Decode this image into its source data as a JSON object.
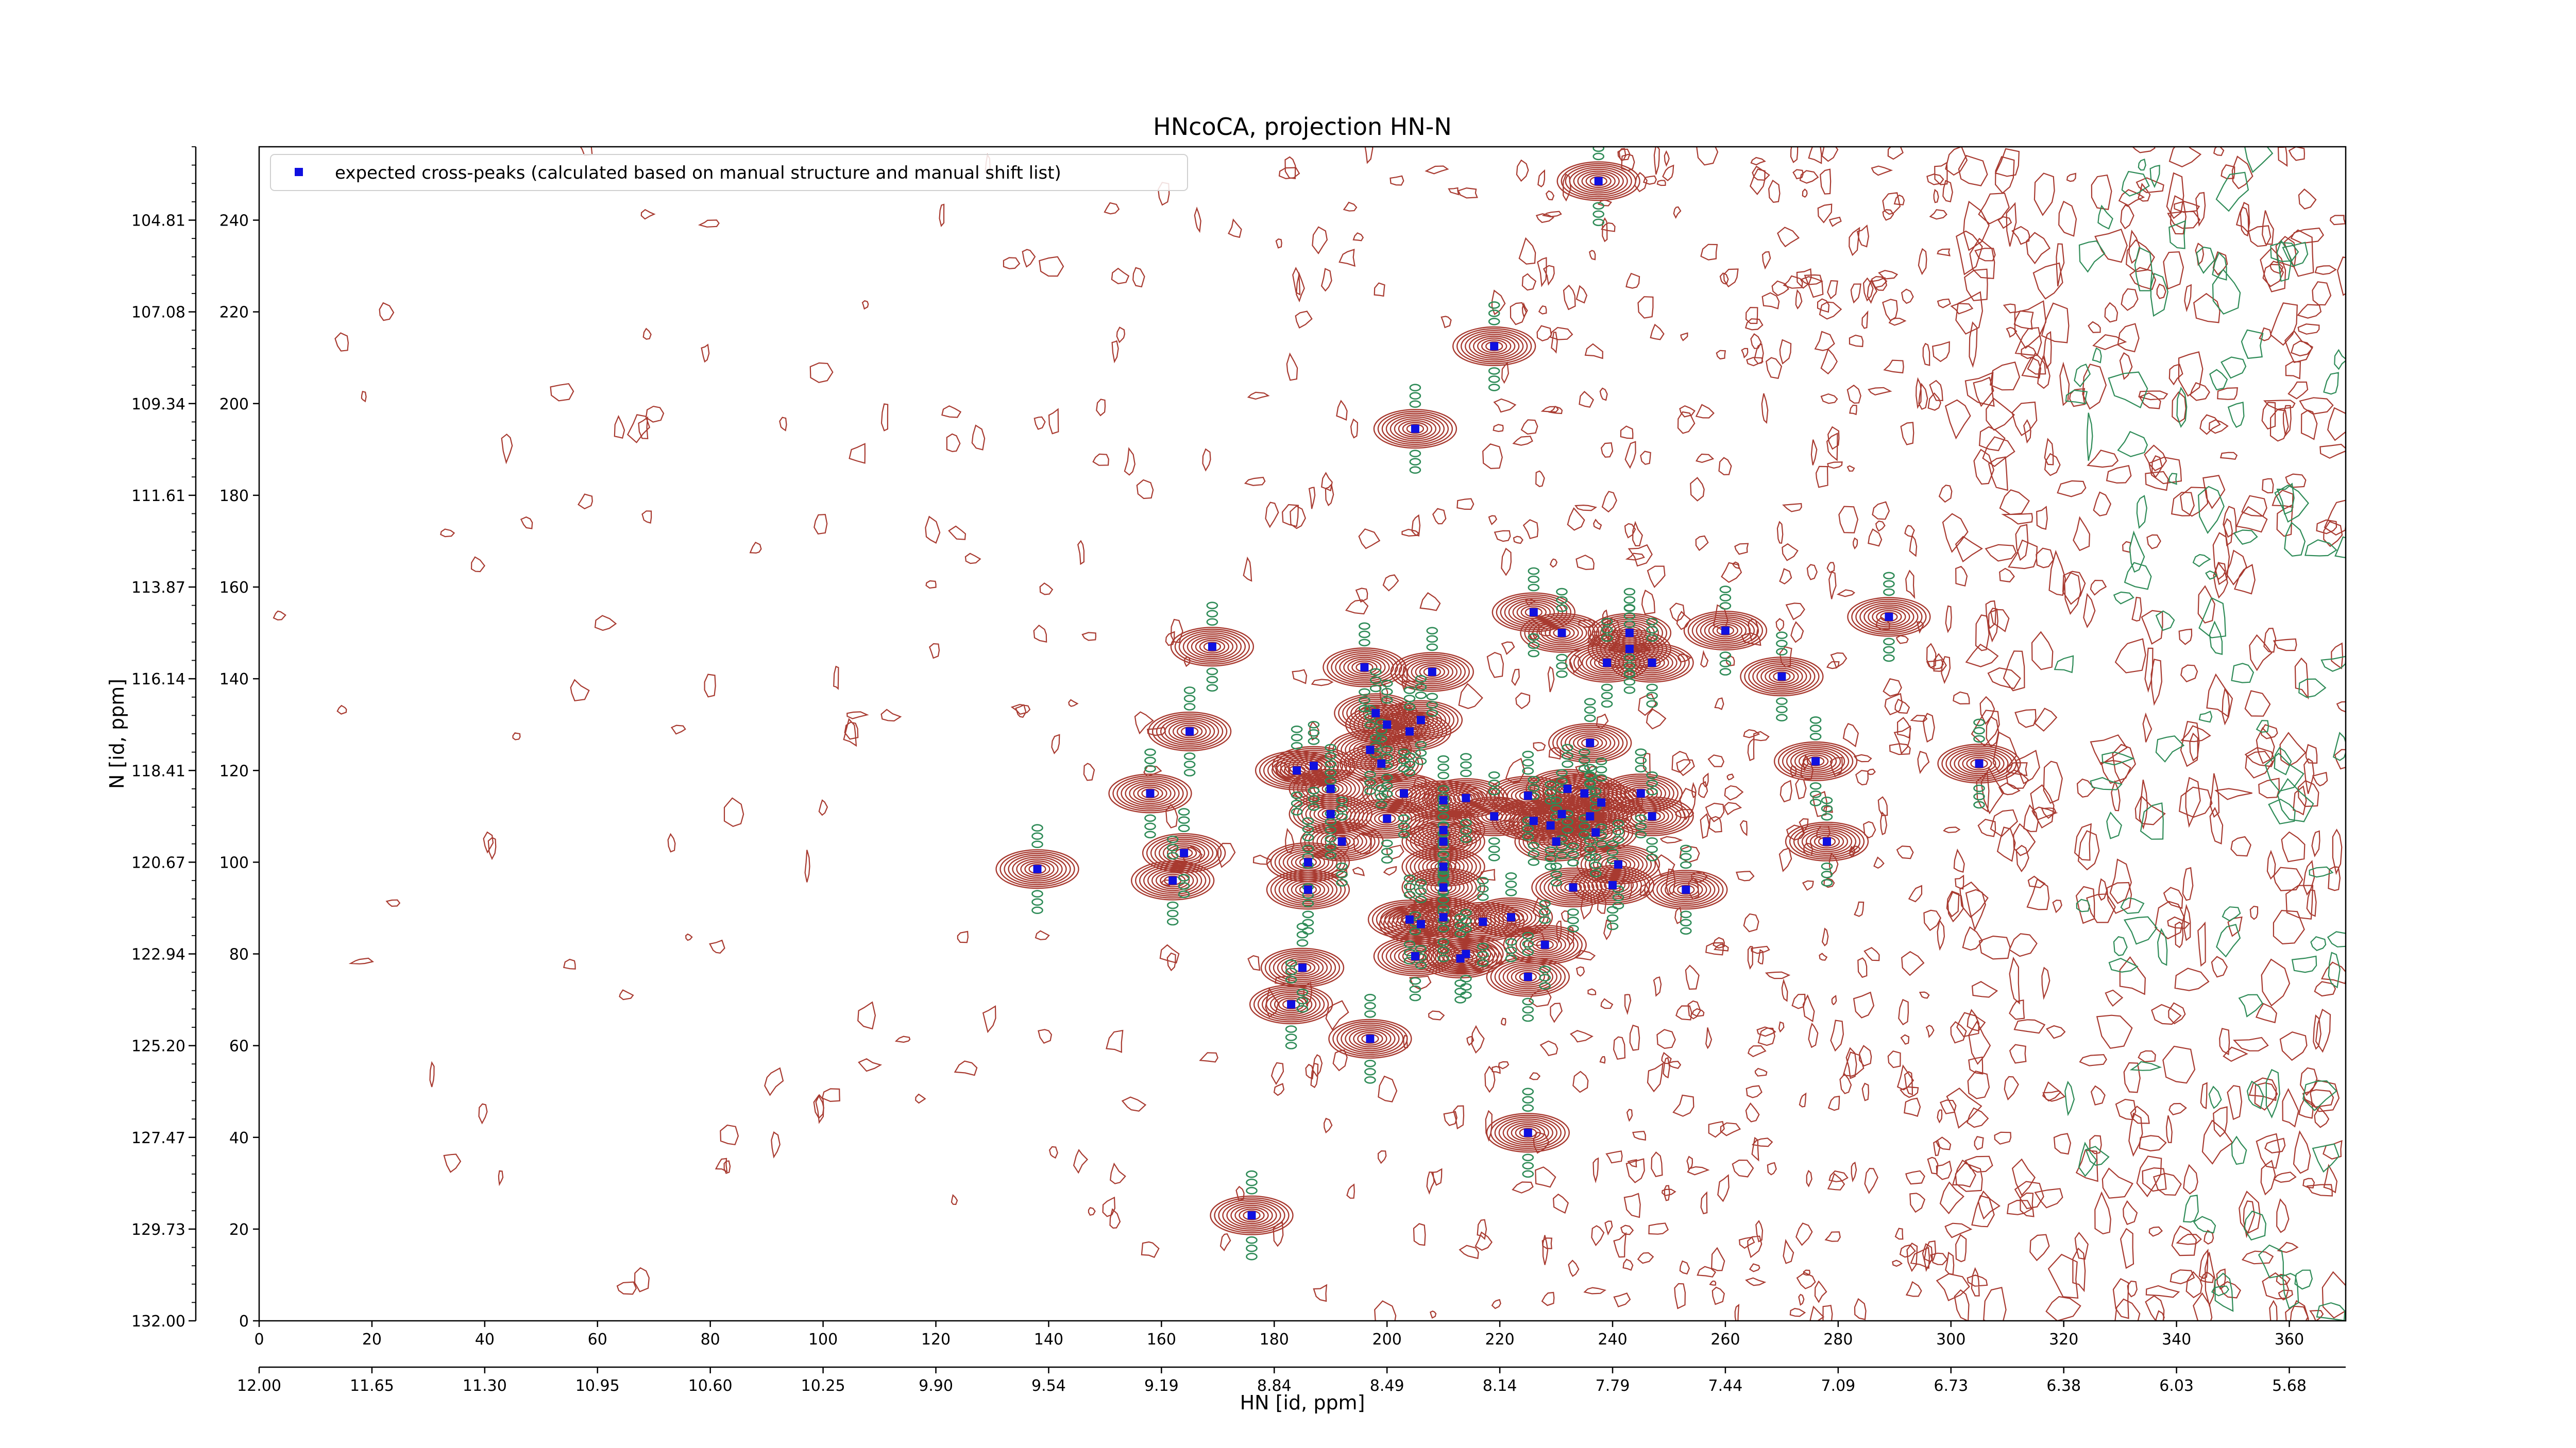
{
  "chart_data": {
    "type": "scatter",
    "title": "HNcoCA, projection HN-N",
    "xlabel": "HN [id, ppm]",
    "ylabel": "N [id, ppm]",
    "legend": {
      "placement": "top-left",
      "label": "expected cross-peaks (calculated based on manual structure and manual shift list)"
    },
    "grid": false,
    "xlim": [
      0,
      370
    ],
    "ylim": [
      0,
      256
    ],
    "bottom_x_ticks": [
      0,
      20,
      40,
      60,
      80,
      100,
      120,
      140,
      160,
      180,
      200,
      220,
      240,
      260,
      280,
      300,
      320,
      340,
      360
    ],
    "second_x_axis_tick_labels": [
      "12.00",
      "11.65",
      "11.30",
      "10.95",
      "10.60",
      "10.25",
      "9.90",
      "9.54",
      "9.19",
      "8.84",
      "8.49",
      "8.14",
      "7.79",
      "7.44",
      "7.09",
      "6.73",
      "6.38",
      "6.03",
      "5.68"
    ],
    "inner_y_ticks": [
      0,
      20,
      40,
      60,
      80,
      100,
      120,
      140,
      160,
      180,
      200,
      220,
      240
    ],
    "outer_y_tick_labels": [
      "132.00",
      "129.73",
      "127.47",
      "125.20",
      "122.94",
      "120.67",
      "118.41",
      "116.14",
      "113.87",
      "111.61",
      "109.34",
      "107.08",
      "104.81"
    ],
    "colors": {
      "marker": "#1010e0",
      "contour_positive": "#a83a30",
      "contour_negative": "#2e8b57"
    },
    "series": [
      {
        "name": "expected cross-peaks (calculated based on manual structure and manual shift list)",
        "points": [
          [
            237.5,
            248.5
          ],
          [
            219,
            212.5
          ],
          [
            205,
            194.5
          ],
          [
            169,
            147
          ],
          [
            226,
            154.5
          ],
          [
            231,
            150
          ],
          [
            243,
            150
          ],
          [
            243,
            146.5
          ],
          [
            239,
            143.5
          ],
          [
            247,
            143.5
          ],
          [
            260,
            150.5
          ],
          [
            289,
            153.5
          ],
          [
            270,
            140.5
          ],
          [
            196,
            142.5
          ],
          [
            208,
            141.5
          ],
          [
            165,
            128.5
          ],
          [
            198,
            132.5
          ],
          [
            200,
            130
          ],
          [
            204,
            128.5
          ],
          [
            206,
            131
          ],
          [
            197,
            124.5
          ],
          [
            199,
            121.5
          ],
          [
            187,
            121
          ],
          [
            184,
            120
          ],
          [
            236,
            126
          ],
          [
            276,
            122
          ],
          [
            305,
            121.5
          ],
          [
            158,
            115
          ],
          [
            190,
            116
          ],
          [
            203,
            115
          ],
          [
            210,
            113.5
          ],
          [
            214,
            114
          ],
          [
            225,
            114.5
          ],
          [
            232,
            116
          ],
          [
            235,
            115
          ],
          [
            238,
            113
          ],
          [
            245,
            115
          ],
          [
            190,
            110.5
          ],
          [
            200,
            109.5
          ],
          [
            210,
            107
          ],
          [
            219,
            110
          ],
          [
            226,
            109
          ],
          [
            231,
            110.5
          ],
          [
            236,
            110
          ],
          [
            247,
            110
          ],
          [
            192,
            104.5
          ],
          [
            210,
            104.5
          ],
          [
            230,
            104.5
          ],
          [
            229,
            108
          ],
          [
            237,
            106.5
          ],
          [
            278,
            104.5
          ],
          [
            164,
            102
          ],
          [
            186,
            100
          ],
          [
            210,
            99
          ],
          [
            241,
            99.5
          ],
          [
            138,
            98.5
          ],
          [
            162,
            96
          ],
          [
            186,
            94
          ],
          [
            210,
            94.5
          ],
          [
            233,
            94.5
          ],
          [
            240,
            95
          ],
          [
            253,
            94
          ],
          [
            204,
            87.5
          ],
          [
            206,
            86.5
          ],
          [
            210,
            88
          ],
          [
            214,
            80
          ],
          [
            217,
            87
          ],
          [
            222,
            88
          ],
          [
            228,
            82
          ],
          [
            205,
            79.5
          ],
          [
            213,
            79
          ],
          [
            185,
            77
          ],
          [
            225,
            75
          ],
          [
            183,
            69
          ],
          [
            197,
            61.5
          ],
          [
            225,
            41
          ],
          [
            176,
            23
          ]
        ]
      }
    ]
  }
}
